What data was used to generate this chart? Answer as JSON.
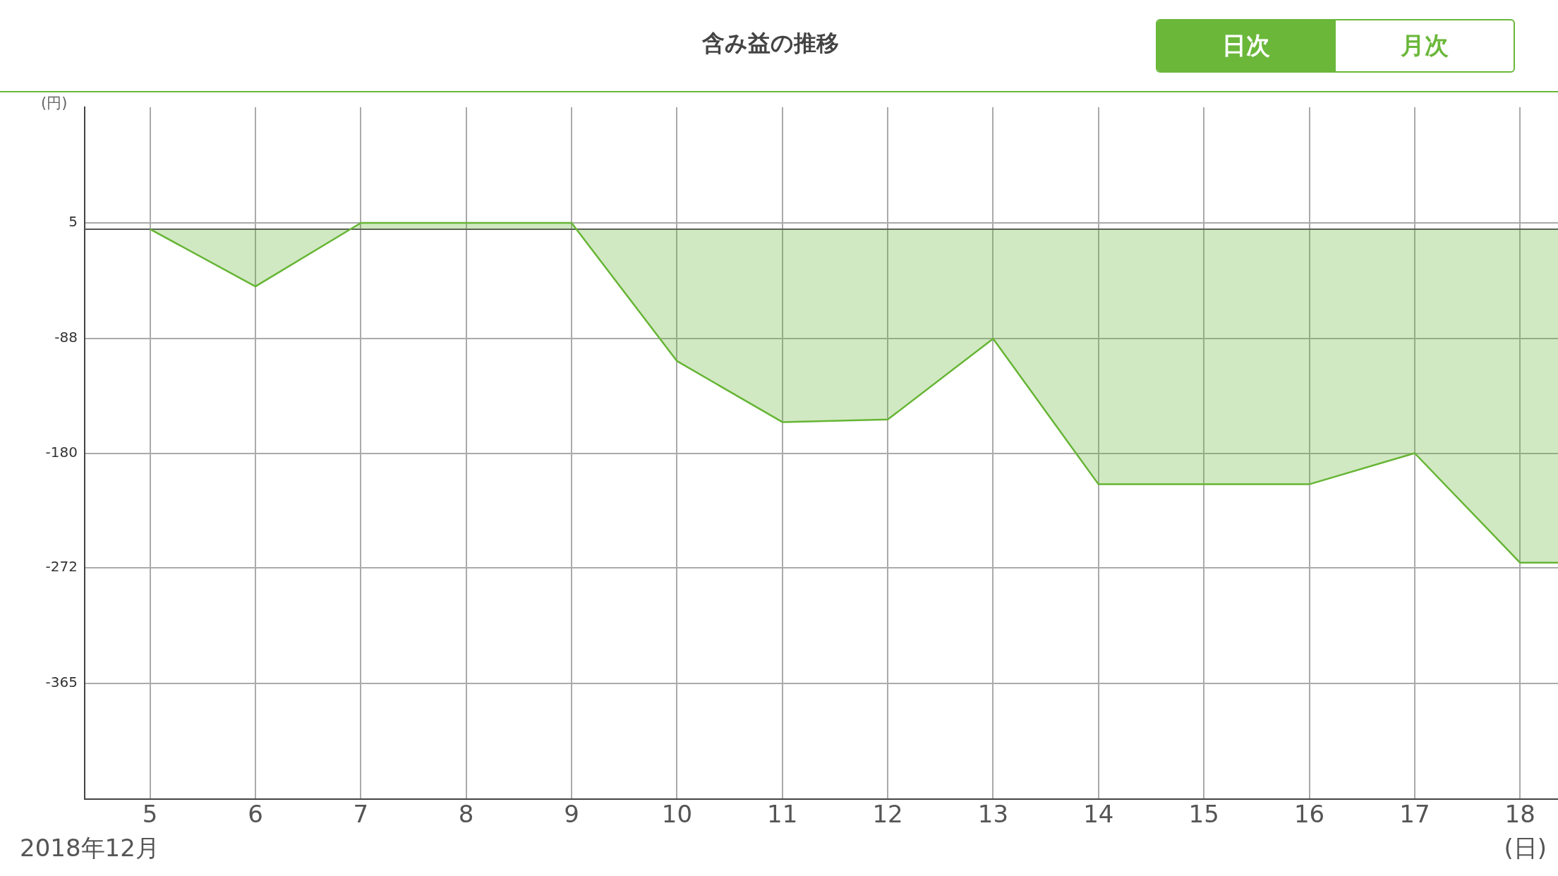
{
  "chart_data": {
    "type": "area",
    "title": "含み益の推移",
    "xlabel": "(日)",
    "ylabel": "(円)",
    "annotations": [
      "2018年12月",
      "日次",
      "月次"
    ],
    "x": [
      5,
      6,
      7,
      8,
      9,
      10,
      11,
      12,
      13,
      14,
      15,
      16,
      17,
      18,
      18.36
    ],
    "series": [
      {
        "color": "#66b535",
        "values": [
          0,
          -46,
          5,
          5,
          5,
          -106,
          -155,
          -153,
          -88,
          -205,
          -205,
          -205,
          -180,
          -268,
          -268
        ]
      }
    ],
    "xlim": [
      4.38,
      18.36
    ],
    "xticks": [
      5,
      6,
      7,
      8,
      9,
      10,
      11,
      12,
      13,
      14,
      15,
      16,
      17,
      18
    ],
    "ylim": [
      -458,
      98
    ],
    "yticks": [
      5,
      -88,
      -180,
      -272,
      -365
    ],
    "ref_lines": [
      {
        "axis": "y",
        "value": 0,
        "color": "#555555"
      }
    ],
    "grid": true,
    "legend": false,
    "marker": "none",
    "line_style": "solid"
  }
}
